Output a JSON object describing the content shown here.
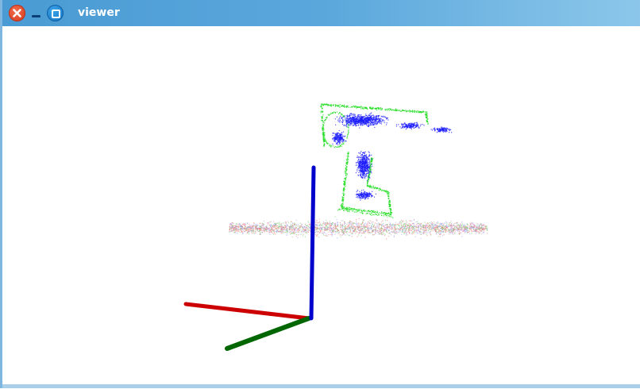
{
  "window": {
    "title": "viewer",
    "controls": {
      "close_icon": "close-icon",
      "minimize_icon": "minimize-icon",
      "maximize_icon": "maximize-icon"
    }
  },
  "scene": {
    "background": "#ffffff",
    "axes": {
      "x_color": "#cc0000",
      "y_color": "#006600",
      "z_color": "#0000cc"
    },
    "point_clouds": [
      {
        "name": "table-plane",
        "colors": [
          "#ff6666",
          "#66cc66",
          "#9999ff",
          "#cc9999"
        ]
      },
      {
        "name": "object-model",
        "color": "#22dd22"
      },
      {
        "name": "object-observed",
        "color": "#1a1aff"
      }
    ]
  }
}
